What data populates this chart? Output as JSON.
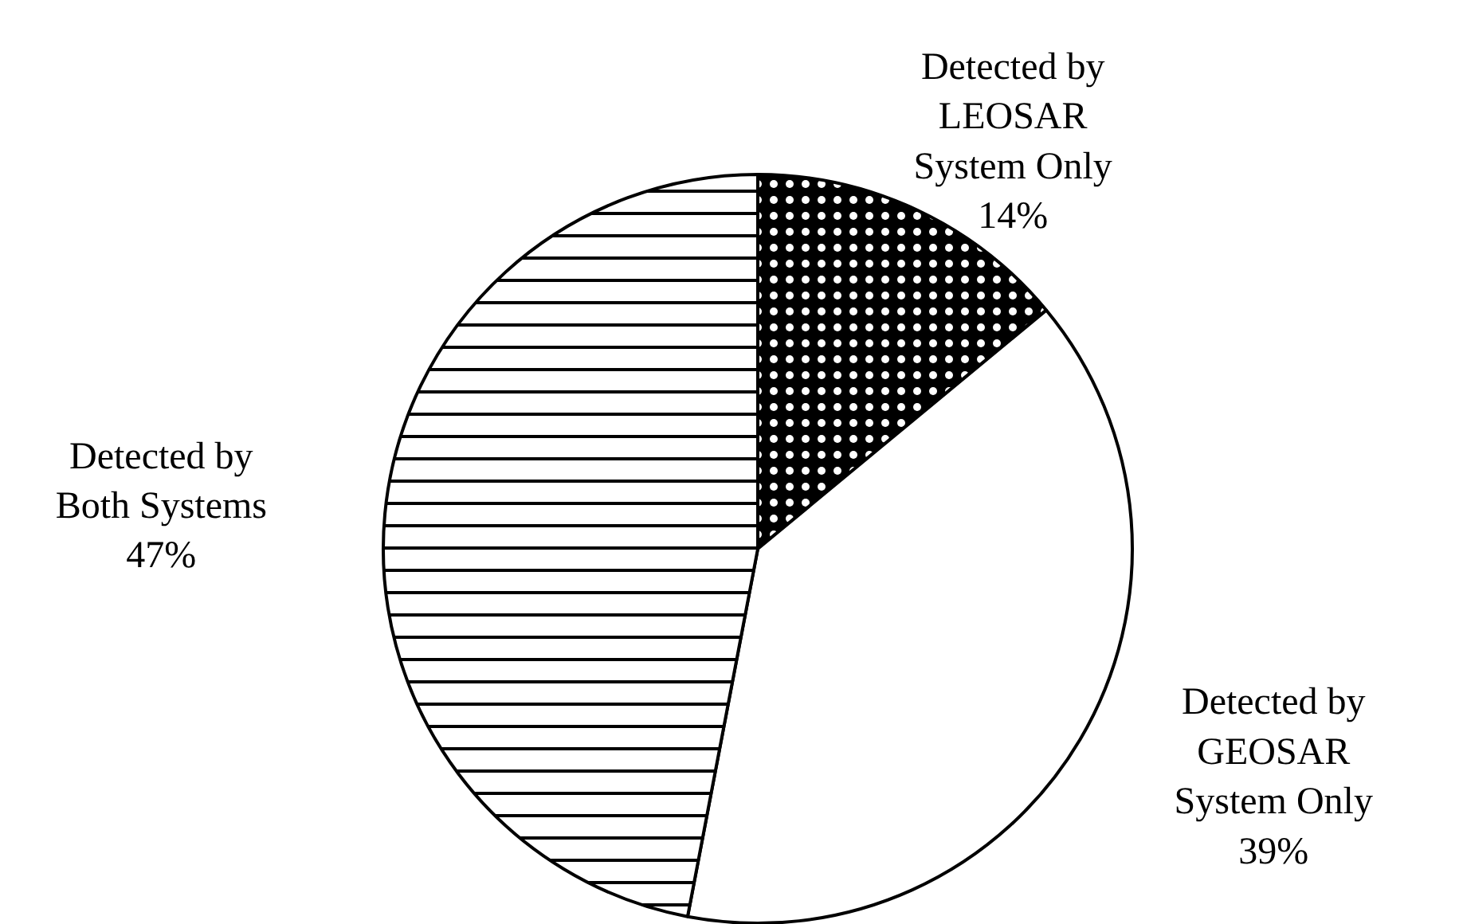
{
  "chart_data": {
    "type": "pie",
    "categories": [
      "Detected by\nLEOSAR\nSystem Only",
      "Detected by\nGEOSAR\nSystem Only",
      "Detected by\nBoth Systems"
    ],
    "values": [
      14,
      39,
      47
    ],
    "colors": [
      "#000000",
      "#ffffff",
      "#ffffff"
    ],
    "value_labels": [
      "14%",
      "39%",
      "47%"
    ]
  }
}
